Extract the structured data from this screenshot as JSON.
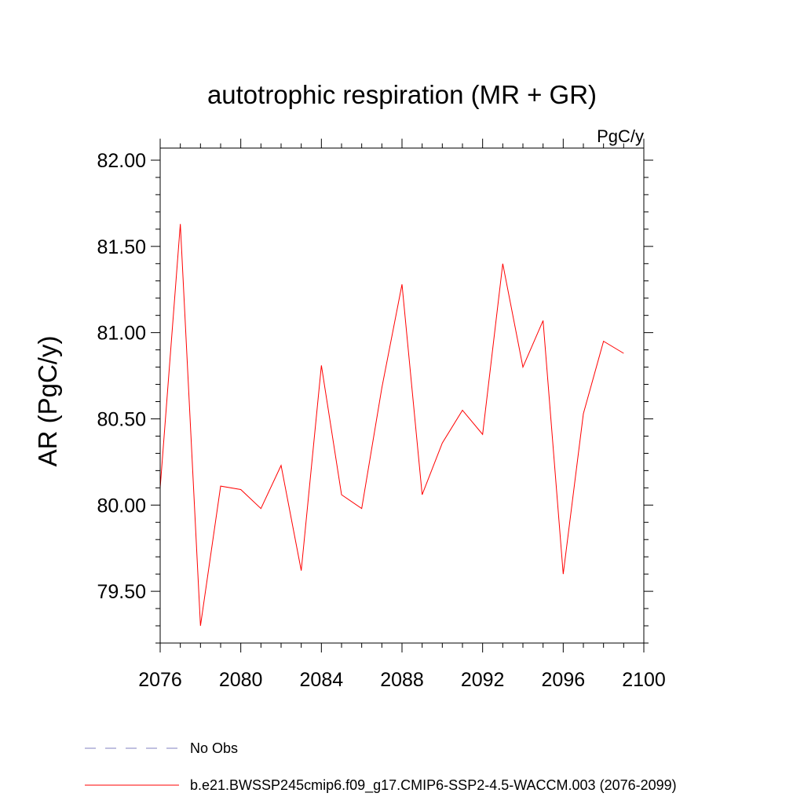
{
  "chart_data": {
    "type": "line",
    "title": "autotrophic respiration (MR + GR)",
    "units": "PgC/y",
    "ylabel": "AR  (PgC/y)",
    "xlabel": "",
    "xlim": [
      2076,
      2100
    ],
    "ylim": [
      79.2,
      82.07
    ],
    "x_ticks": [
      2076,
      2080,
      2084,
      2088,
      2092,
      2096,
      2100
    ],
    "x_tick_labels": [
      "2076",
      "2080",
      "2084",
      "2088",
      "2092",
      "2096",
      "2100"
    ],
    "x_minor_step": 1,
    "y_ticks": [
      79.5,
      80.0,
      80.5,
      81.0,
      81.5,
      82.0
    ],
    "y_tick_labels": [
      "79.50",
      "80.00",
      "80.50",
      "81.00",
      "81.50",
      "82.00"
    ],
    "y_minor_step": 0.1,
    "grid": false,
    "series": [
      {
        "name": "b.e21.BWSSP245cmip6.f09_g17.CMIP6-SSP2-4.5-WACCM.003 (2076-2099)",
        "color": "#ff0000",
        "style": "solid",
        "x": [
          2076,
          2077,
          2078,
          2079,
          2080,
          2081,
          2082,
          2083,
          2084,
          2085,
          2086,
          2087,
          2088,
          2089,
          2090,
          2091,
          2092,
          2093,
          2094,
          2095,
          2096,
          2097,
          2098,
          2099
        ],
        "values": [
          80.1,
          81.63,
          79.3,
          80.11,
          80.09,
          79.98,
          80.23,
          79.62,
          80.81,
          80.06,
          79.98,
          80.68,
          81.28,
          80.06,
          80.36,
          80.55,
          80.41,
          81.4,
          80.8,
          81.07,
          79.6,
          80.53,
          80.95,
          80.88
        ]
      }
    ],
    "legend": {
      "placement": "bottom-left",
      "entries": [
        {
          "label": "No Obs",
          "color": "#8080c0",
          "style": "dashed"
        },
        {
          "label": "b.e21.BWSSP245cmip6.f09_g17.CMIP6-SSP2-4.5-WACCM.003 (2076-2099)",
          "color": "#ff0000",
          "style": "solid"
        }
      ]
    }
  }
}
